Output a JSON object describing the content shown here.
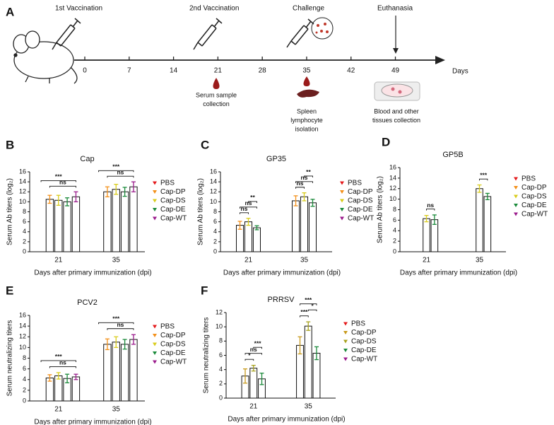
{
  "timeline": {
    "panel": "A",
    "events": [
      "1st Vaccination",
      "2nd Vaccination",
      "Challenge",
      "Euthanasia"
    ],
    "days": [
      0,
      7,
      14,
      21,
      28,
      35,
      42,
      49
    ],
    "unit": "Days",
    "notes": [
      [
        "Serum sample",
        "collection"
      ],
      [
        "Spleen",
        "lymphocyte",
        "isolation"
      ],
      [
        "Blood and other",
        "tissues collection"
      ]
    ]
  },
  "chart_data": [
    {
      "type": "bar",
      "panel": "B",
      "title": "Cap",
      "ylabel": "Serum Ab titers (log₂)",
      "xlabel": "Days after primary immunization (dpi)",
      "categories": [
        "21",
        "35"
      ],
      "ylim": [
        0,
        16
      ],
      "yticks": [
        0,
        2,
        4,
        6,
        8,
        10,
        12,
        14,
        16
      ],
      "legend": "right",
      "series": [
        {
          "name": "PBS",
          "color": "#e41a1c",
          "values": [
            0,
            0
          ],
          "errors": [
            0,
            0
          ]
        },
        {
          "name": "Cap-DP",
          "color": "#f39019",
          "values": [
            10.5,
            12
          ],
          "errors": [
            0.8,
            1
          ]
        },
        {
          "name": "Cap-DS",
          "color": "#d9cc1b",
          "values": [
            10.3,
            12.5
          ],
          "errors": [
            1,
            1
          ]
        },
        {
          "name": "Cap-DE",
          "color": "#1a8a3a",
          "values": [
            10,
            12
          ],
          "errors": [
            0.8,
            0.9
          ]
        },
        {
          "name": "Cap-WT",
          "color": "#9b1b8c",
          "values": [
            11,
            13
          ],
          "errors": [
            1,
            1
          ]
        }
      ],
      "annotations": [
        {
          "group": 0,
          "from": 1,
          "to": 4,
          "label": "ns"
        },
        {
          "group": 0,
          "from": 0,
          "to": 4,
          "label": "***"
        },
        {
          "group": 1,
          "from": 1,
          "to": 4,
          "label": "ns"
        },
        {
          "group": 1,
          "from": 0,
          "to": 4,
          "label": "***"
        }
      ]
    },
    {
      "type": "bar",
      "panel": "C",
      "title": "GP35",
      "ylabel": "Serum Ab titers (log₂)",
      "xlabel": "Days after primary immunization (dpi)",
      "categories": [
        "21",
        "35"
      ],
      "ylim": [
        0,
        16
      ],
      "yticks": [
        0,
        2,
        4,
        6,
        8,
        10,
        12,
        14,
        16
      ],
      "legend": "right",
      "series": [
        {
          "name": "PBS",
          "color": "#e41a1c",
          "values": [
            0,
            0
          ],
          "errors": [
            0,
            0
          ]
        },
        {
          "name": "Cap-DP",
          "color": "#f39019",
          "values": [
            5.3,
            10.2
          ],
          "errors": [
            0.8,
            1
          ]
        },
        {
          "name": "Cap-DS",
          "color": "#d9cc1b",
          "values": [
            6,
            11
          ],
          "errors": [
            0.7,
            0.8
          ]
        },
        {
          "name": "Cap-DE",
          "color": "#1a8a3a",
          "values": [
            4.8,
            9.8
          ],
          "errors": [
            0.4,
            0.7
          ]
        },
        {
          "name": "Cap-WT",
          "color": "#9b1b8c",
          "values": [
            0,
            0
          ],
          "errors": [
            0,
            0
          ]
        }
      ],
      "annotations": [
        {
          "group": 0,
          "from": 1,
          "to": 2,
          "label": "ns"
        },
        {
          "group": 0,
          "from": 1,
          "to": 3,
          "label": "ns"
        },
        {
          "group": 0,
          "from": 2,
          "to": 3,
          "label": "**"
        },
        {
          "group": 1,
          "from": 1,
          "to": 2,
          "label": "ns"
        },
        {
          "group": 1,
          "from": 1,
          "to": 3,
          "label": "ns"
        },
        {
          "group": 1,
          "from": 2,
          "to": 3,
          "label": "**"
        }
      ]
    },
    {
      "type": "bar",
      "panel": "D",
      "title": "GP5B",
      "ylabel": "Serum Ab titers (log₂)",
      "xlabel": "Days after primary immunization (dpi)",
      "categories": [
        "21",
        "35"
      ],
      "ylim": [
        0,
        16
      ],
      "yticks": [
        0,
        2,
        4,
        6,
        8,
        10,
        12,
        14,
        16
      ],
      "legend": "right",
      "series": [
        {
          "name": "PBS",
          "color": "#e41a1c",
          "values": [
            0,
            0
          ],
          "errors": [
            0,
            0
          ]
        },
        {
          "name": "Cap-DP",
          "color": "#f39019",
          "values": [
            0,
            0
          ],
          "errors": [
            0,
            0
          ]
        },
        {
          "name": "Cap-DS",
          "color": "#d9cc1b",
          "values": [
            6.3,
            12
          ],
          "errors": [
            0.6,
            0.7
          ]
        },
        {
          "name": "Cap-DE",
          "color": "#1a8a3a",
          "values": [
            6.1,
            10.5
          ],
          "errors": [
            0.9,
            0.6
          ]
        },
        {
          "name": "Cap-WT",
          "color": "#9b1b8c",
          "values": [
            0,
            0
          ],
          "errors": [
            0,
            0
          ]
        }
      ],
      "annotations": [
        {
          "group": 0,
          "from": 2,
          "to": 3,
          "label": "ns"
        },
        {
          "group": 1,
          "from": 2,
          "to": 3,
          "label": "***"
        }
      ]
    },
    {
      "type": "bar",
      "panel": "E",
      "title": "PCV2",
      "ylabel": "Serum neutralizing titers",
      "xlabel": "Days after primary immunization (dpi)",
      "categories": [
        "21",
        "35"
      ],
      "ylim": [
        0,
        16
      ],
      "yticks": [
        0,
        2,
        4,
        6,
        8,
        10,
        12,
        14,
        16
      ],
      "legend": "right",
      "series": [
        {
          "name": "PBS",
          "color": "#e41a1c",
          "values": [
            0,
            0
          ],
          "errors": [
            0,
            0
          ]
        },
        {
          "name": "Cap-DP",
          "color": "#f39019",
          "values": [
            4.3,
            10.6
          ],
          "errors": [
            0.6,
            1
          ]
        },
        {
          "name": "Cap-DS",
          "color": "#d9cc1b",
          "values": [
            4.7,
            11
          ],
          "errors": [
            0.6,
            1
          ]
        },
        {
          "name": "Cap-DE",
          "color": "#1a8a3a",
          "values": [
            4.2,
            10.6
          ],
          "errors": [
            0.8,
            0.9
          ]
        },
        {
          "name": "Cap-WT",
          "color": "#9b1b8c",
          "values": [
            4.5,
            11.5
          ],
          "errors": [
            0.5,
            0.9
          ]
        }
      ],
      "annotations": [
        {
          "group": 0,
          "from": 1,
          "to": 4,
          "label": "ns"
        },
        {
          "group": 0,
          "from": 0,
          "to": 4,
          "label": "***"
        },
        {
          "group": 1,
          "from": 1,
          "to": 4,
          "label": "ns"
        },
        {
          "group": 1,
          "from": 0,
          "to": 4,
          "label": "***"
        }
      ]
    },
    {
      "type": "bar",
      "panel": "F",
      "title": "PRRSV",
      "ylabel": "Serum neutralizing titers",
      "xlabel": "Days after primary immunization (dpi)",
      "categories": [
        "21",
        "35"
      ],
      "ylim": [
        0,
        12
      ],
      "yticks": [
        0,
        2,
        4,
        6,
        8,
        10,
        12
      ],
      "legend": "right",
      "series": [
        {
          "name": "PBS",
          "color": "#e41a1c",
          "values": [
            0,
            0
          ],
          "errors": [
            0,
            0
          ]
        },
        {
          "name": "Cap-DP",
          "color": "#c89a1c",
          "values": [
            3.1,
            7.4
          ],
          "errors": [
            1,
            1.2
          ]
        },
        {
          "name": "Cap-DS",
          "color": "#a8a21e",
          "values": [
            4.2,
            10.1
          ],
          "errors": [
            0.4,
            0.6
          ]
        },
        {
          "name": "Cap-DE",
          "color": "#1a8a3a",
          "values": [
            2.7,
            6.3
          ],
          "errors": [
            0.8,
            0.9
          ]
        },
        {
          "name": "Cap-WT",
          "color": "#9b1b8c",
          "values": [
            0,
            0
          ],
          "errors": [
            0,
            0
          ]
        }
      ],
      "annotations": [
        {
          "group": 0,
          "from": 1,
          "to": 2,
          "label": "*"
        },
        {
          "group": 0,
          "from": 1,
          "to": 3,
          "label": "ns"
        },
        {
          "group": 0,
          "from": 2,
          "to": 3,
          "label": "***"
        },
        {
          "group": 1,
          "from": 1,
          "to": 2,
          "label": "***"
        },
        {
          "group": 1,
          "from": 2,
          "to": 3,
          "label": "*"
        },
        {
          "group": 1,
          "from": 1,
          "to": 3,
          "label": "***"
        }
      ]
    }
  ]
}
